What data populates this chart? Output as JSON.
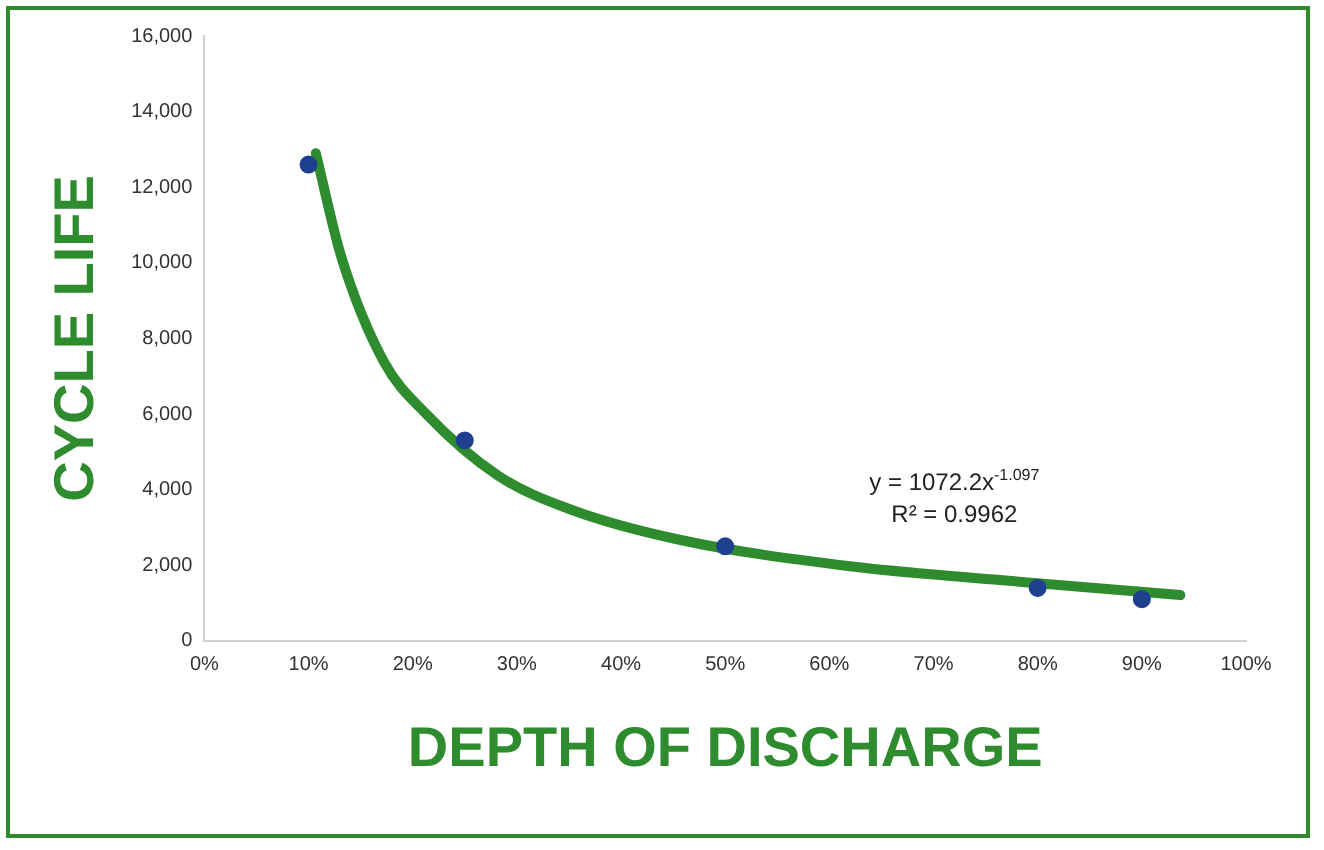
{
  "chart_data": {
    "type": "scatter",
    "xlabel": "DEPTH OF DISCHARGE",
    "ylabel": "CYCLE LIFE",
    "x": [
      10,
      25,
      50,
      80,
      90
    ],
    "series": [
      {
        "color": "#1f3f8f",
        "marker": "circle",
        "values": [
          12600,
          5300,
          2500,
          1400,
          1100
        ]
      },
      {
        "type": "line",
        "color": "#2e8b2e",
        "marker": "none",
        "x": [
          10.7,
          13.1,
          17.2,
          21.3,
          28.2,
          35.1,
          45.5,
          62,
          75.8,
          93.7
        ],
        "values": [
          12900,
          10200,
          7400,
          6000,
          4370,
          3480,
          2680,
          1970,
          1620,
          1210
        ]
      }
    ],
    "xlim": [
      0,
      100
    ],
    "xticks": [
      {
        "value": 0,
        "label": "0%"
      },
      {
        "value": 10,
        "label": "10%"
      },
      {
        "value": 20,
        "label": "20%"
      },
      {
        "value": 30,
        "label": "30%"
      },
      {
        "value": 40,
        "label": "40%"
      },
      {
        "value": 50,
        "label": "50%"
      },
      {
        "value": 60,
        "label": "60%"
      },
      {
        "value": 70,
        "label": "70%"
      },
      {
        "value": 80,
        "label": "80%"
      },
      {
        "value": 90,
        "label": "90%"
      },
      {
        "value": 100,
        "label": "100%"
      }
    ],
    "ylim": [
      0,
      16000
    ],
    "yticks": [
      0,
      {
        "value": 2000,
        "label": "2,000"
      },
      {
        "value": 4000,
        "label": "4,000"
      },
      {
        "value": 6000,
        "label": "6,000"
      },
      {
        "value": 8000,
        "label": "8,000"
      },
      {
        "value": 10000,
        "label": "10,000"
      },
      {
        "value": 12000,
        "label": "12,000"
      },
      {
        "value": 14000,
        "label": "14,000"
      },
      {
        "value": 16000,
        "label": "16,000"
      }
    ],
    "grid": false,
    "legend": false,
    "annotations": [
      "y = 1072.2x$^{-1.097}$",
      "R² = 0.9962"
    ]
  }
}
